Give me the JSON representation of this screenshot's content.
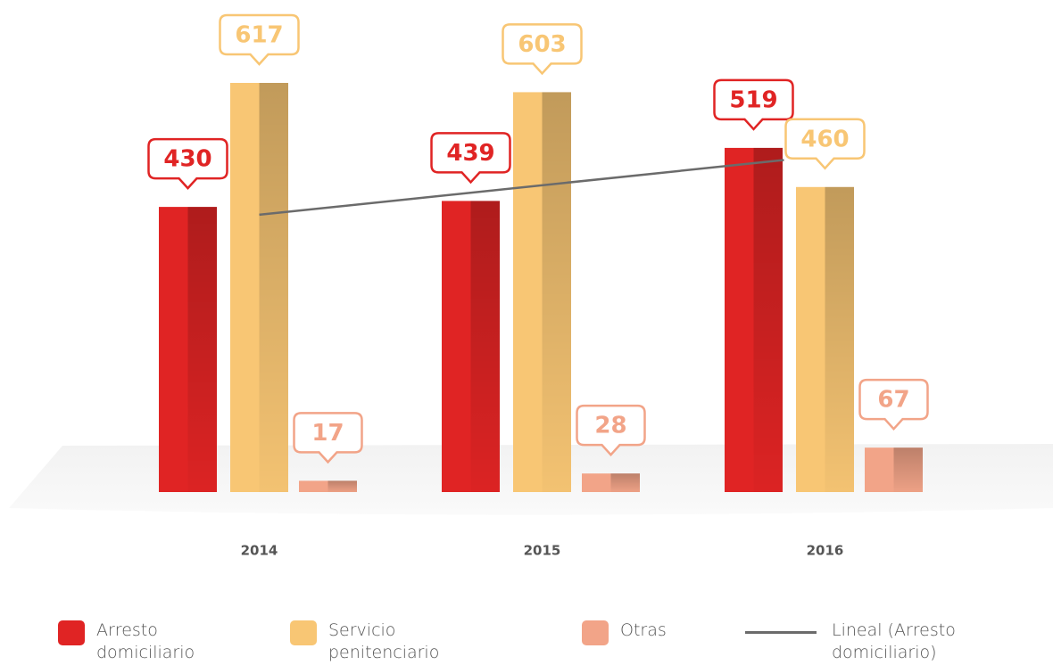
{
  "chart_data": {
    "type": "bar",
    "categories": [
      "2014",
      "2015",
      "2016"
    ],
    "series": [
      {
        "name": "Arresto domiciliario",
        "color": "#e02424",
        "values": [
          430,
          439,
          519
        ],
        "trendline": {
          "name": "Lineal (Arresto domiciliario)",
          "color": "#6b6b6b"
        }
      },
      {
        "name": "Servicio penitenciario",
        "color": "#f8c674",
        "values": [
          617,
          603,
          460
        ]
      },
      {
        "name": "Otras",
        "color": "#f2a488",
        "values": [
          17,
          28,
          67
        ]
      }
    ]
  }
}
